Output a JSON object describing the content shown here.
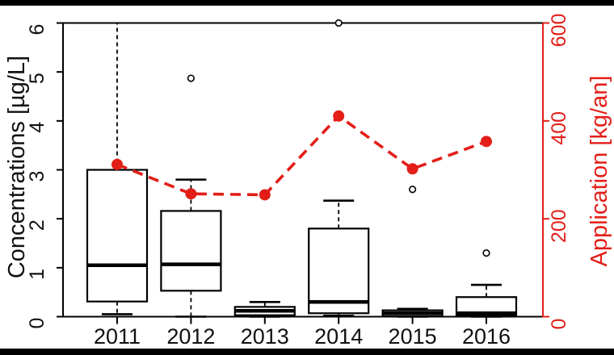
{
  "chart_data": {
    "type": "boxplot-with-line",
    "title": "",
    "categories": [
      "2011",
      "2012",
      "2013",
      "2014",
      "2015",
      "2016"
    ],
    "left_axis": {
      "label": "Concentrations [µg/L]",
      "ticks": [
        "0",
        "1",
        "2",
        "3",
        "4",
        "5",
        "6"
      ],
      "tick_values": [
        0,
        1,
        2,
        3,
        4,
        5,
        6
      ],
      "range": [
        0,
        6
      ]
    },
    "right_axis": {
      "label": "Application [kg/an]",
      "ticks": [
        "0",
        "200",
        "400",
        "600"
      ],
      "tick_values": [
        0,
        200,
        400,
        600
      ],
      "range": [
        0,
        600
      ]
    },
    "boxplots": [
      {
        "category": "2011",
        "whisker_low": 0.05,
        "q1": 0.31,
        "median": 1.05,
        "q3": 3.0,
        "whisker_high": 6.0,
        "cap_high": false,
        "outliers": []
      },
      {
        "category": "2012",
        "whisker_low": 0.0,
        "q1": 0.53,
        "median": 1.07,
        "q3": 2.16,
        "whisker_high": 2.8,
        "cap_high": true,
        "outliers": [
          4.87
        ]
      },
      {
        "category": "2013",
        "whisker_low": 0.0,
        "q1": 0.03,
        "median": 0.12,
        "q3": 0.2,
        "whisker_high": 0.3,
        "cap_high": true,
        "outliers": []
      },
      {
        "category": "2014",
        "whisker_low": 0.02,
        "q1": 0.07,
        "median": 0.3,
        "q3": 1.8,
        "whisker_high": 2.37,
        "cap_high": true,
        "outliers": [
          6.0
        ]
      },
      {
        "category": "2015",
        "whisker_low": 0.0,
        "q1": 0.01,
        "median": 0.07,
        "q3": 0.13,
        "whisker_high": 0.16,
        "cap_high": true,
        "outliers": [
          2.6
        ]
      },
      {
        "category": "2016",
        "whisker_low": 0.0,
        "q1": 0.02,
        "median": 0.07,
        "q3": 0.4,
        "whisker_high": 0.65,
        "cap_high": true,
        "outliers": [
          1.3
        ]
      }
    ],
    "line_series": {
      "name": "Application",
      "unit": "kg/an",
      "axis": "right",
      "style": "dashed-line",
      "marker": "filled-circle",
      "values": [
        311,
        251,
        249,
        410,
        302,
        358
      ]
    },
    "legend": "none",
    "grid": false,
    "colors": {
      "line": "#e31e18",
      "box_stroke": "#000000",
      "box_fill": "#ffffff",
      "background": "#ffffff",
      "frame_bars": "#000000"
    }
  }
}
